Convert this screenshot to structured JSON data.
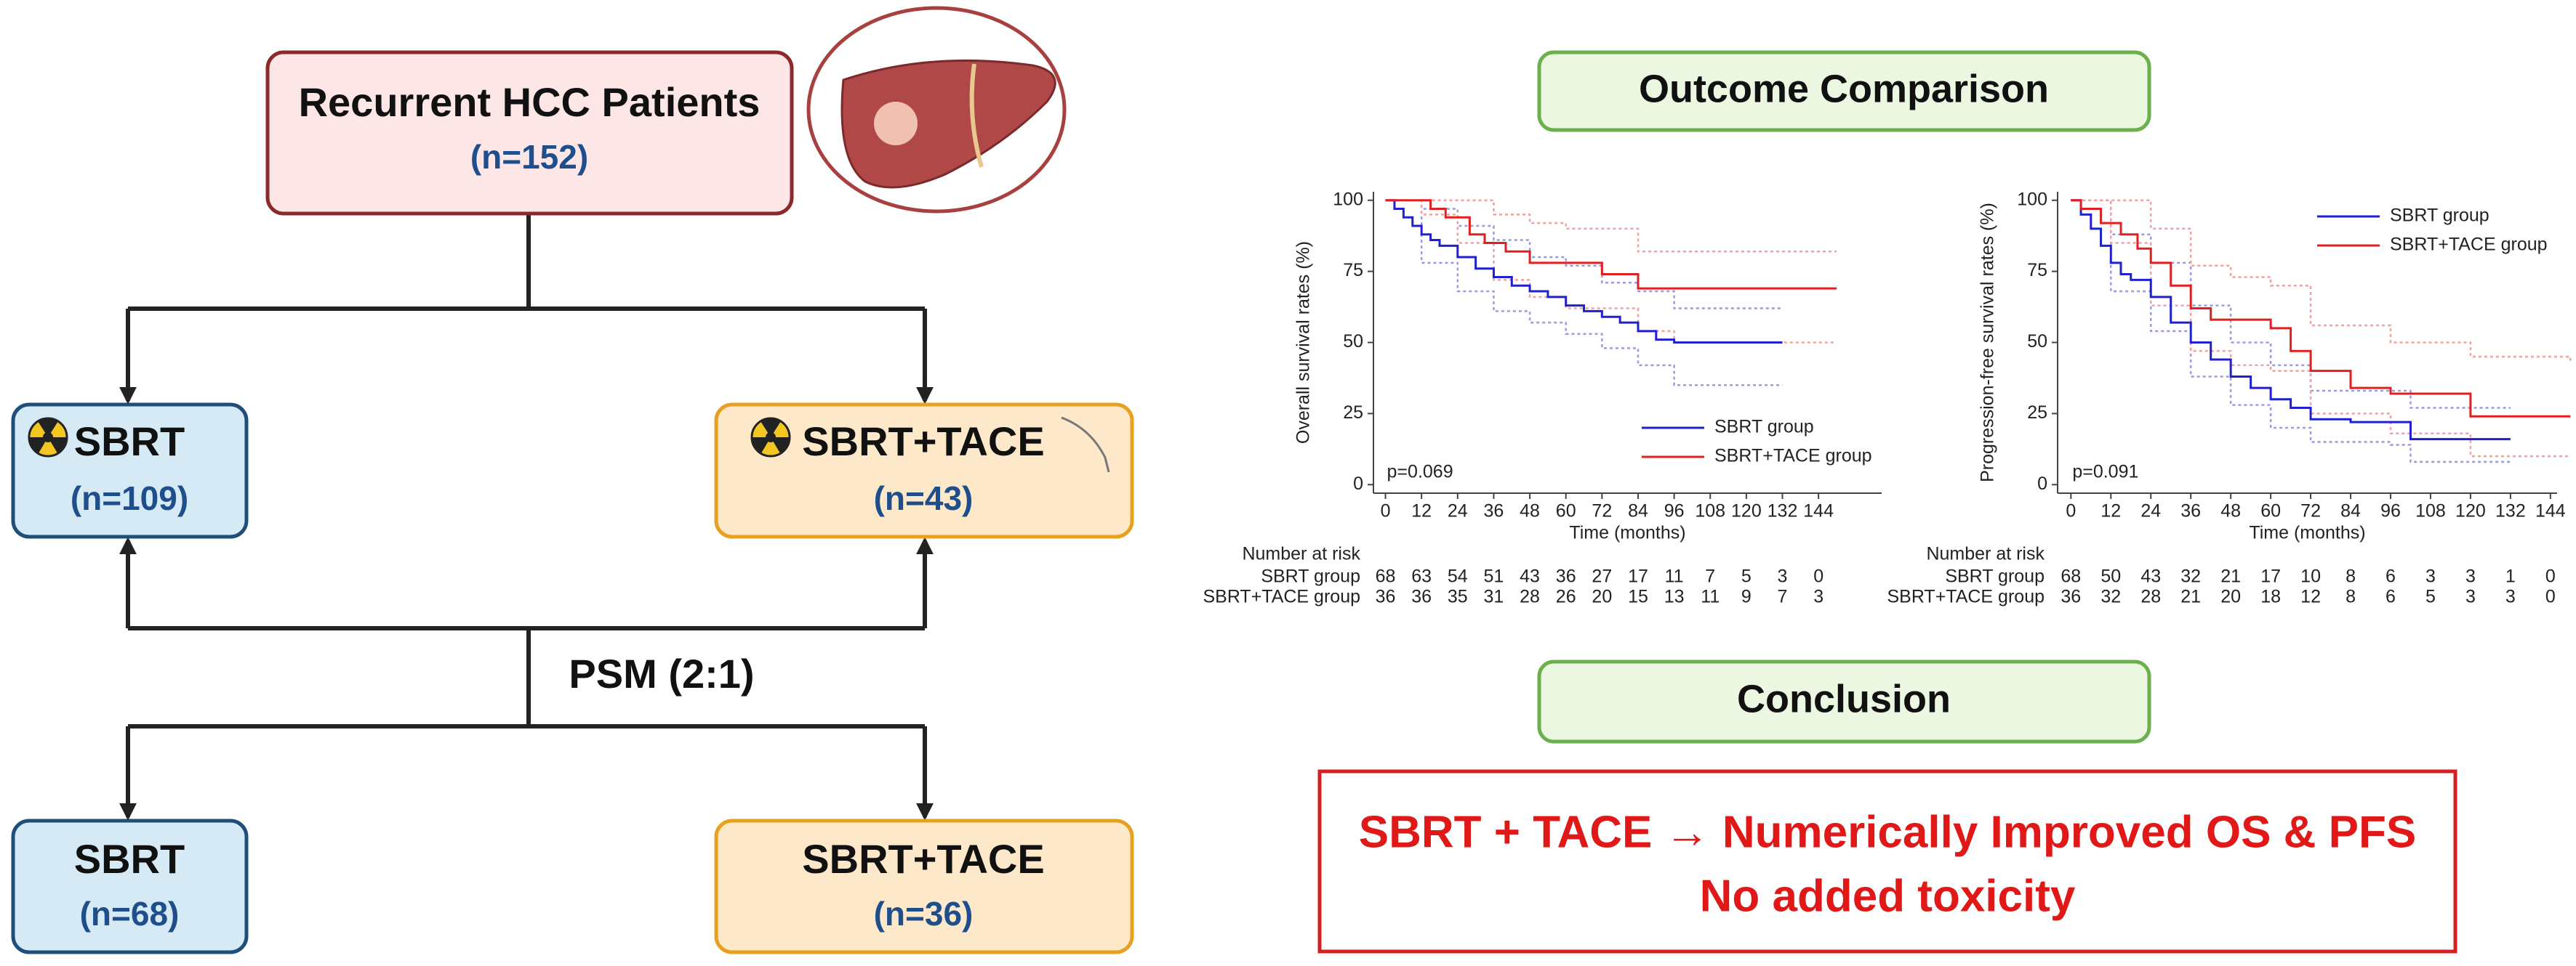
{
  "flowchart": {
    "top": {
      "title": "Recurrent HCC Patients",
      "n": "(n=152)"
    },
    "level1": [
      {
        "label": "SBRT",
        "n": "(n=109)"
      },
      {
        "label": "SBRT+TACE",
        "n": "(n=43)"
      }
    ],
    "psm": "PSM (2:1)",
    "level2": [
      {
        "label": "SBRT",
        "n": "(n=68)"
      },
      {
        "label": "SBRT+TACE",
        "n": "(n=36)"
      }
    ]
  },
  "outcome_title": "Outcome Comparison",
  "chart_data": [
    {
      "type": "line",
      "xlabel": "Time (months)",
      "ylabel": "Overall survival rates   (%)",
      "annotation": "p=0.069",
      "xlim": [
        -4,
        165
      ],
      "ylim": [
        -3,
        103
      ],
      "xticks": [
        0,
        12,
        24,
        36,
        48,
        60,
        72,
        84,
        96,
        108,
        120,
        132,
        144
      ],
      "yticks": [
        0,
        25,
        50,
        75,
        100
      ],
      "legend": "lower right",
      "step": true,
      "risk_title": "Number at risk",
      "series": [
        {
          "name": "SBRT group",
          "color": "#2020d0",
          "ci_color": "#9a9ae0",
          "x": [
            0,
            3,
            6,
            9,
            12,
            15,
            18,
            24,
            30,
            36,
            42,
            48,
            54,
            60,
            66,
            72,
            78,
            84,
            90,
            96,
            132
          ],
          "values": [
            100,
            97,
            94,
            91,
            88,
            86,
            84,
            80,
            76,
            73,
            70,
            68,
            66,
            63,
            61,
            59,
            57,
            54,
            51,
            50,
            50
          ],
          "ci": [
            {
              "x": [
                0,
                12,
                24,
                36,
                48,
                60,
                72,
                84,
                96,
                132
              ],
              "values": [
                100,
                97,
                91,
                86,
                80,
                77,
                71,
                68,
                62,
                62
              ]
            },
            {
              "x": [
                0,
                12,
                24,
                36,
                48,
                60,
                72,
                84,
                96,
                132
              ],
              "values": [
                100,
                78,
                68,
                61,
                57,
                53,
                48,
                42,
                35,
                35
              ]
            }
          ],
          "at_risk": [
            68,
            63,
            54,
            51,
            43,
            36,
            27,
            17,
            11,
            7,
            5,
            3,
            0
          ]
        },
        {
          "name": "SBRT+TACE group",
          "color": "#e02020",
          "ci_color": "#f0a0a0",
          "x": [
            0,
            12,
            15,
            20,
            28,
            33,
            40,
            48,
            60,
            72,
            84,
            150
          ],
          "values": [
            100,
            100,
            97,
            94,
            88,
            85,
            82,
            78,
            78,
            74,
            69,
            69
          ],
          "ci": [
            {
              "x": [
                0,
                24,
                36,
                48,
                60,
                84,
                150
              ],
              "values": [
                100,
                100,
                95,
                92,
                90,
                82,
                82
              ]
            },
            {
              "x": [
                0,
                12,
                24,
                36,
                48,
                60,
                84,
                96,
                150
              ],
              "values": [
                100,
                95,
                85,
                72,
                66,
                62,
                54,
                50,
                50
              ]
            }
          ],
          "at_risk": [
            36,
            36,
            35,
            31,
            28,
            26,
            20,
            15,
            13,
            11,
            9,
            7,
            3
          ]
        }
      ]
    },
    {
      "type": "line",
      "xlabel": "Time (months)",
      "ylabel": "Progression-free survival rates (%)",
      "annotation": "p=0.091",
      "xlim": [
        -4,
        146
      ],
      "ylim": [
        -3,
        103
      ],
      "xticks": [
        0,
        12,
        24,
        36,
        48,
        60,
        72,
        84,
        96,
        108,
        120,
        132,
        144
      ],
      "yticks": [
        0,
        25,
        50,
        75,
        100
      ],
      "legend": "upper right",
      "step": true,
      "risk_title": "Number at risk",
      "series": [
        {
          "name": "SBRT group",
          "color": "#2020d0",
          "ci_color": "#9a9ae0",
          "x": [
            0,
            3,
            6,
            9,
            12,
            15,
            18,
            24,
            30,
            36,
            42,
            48,
            54,
            60,
            66,
            72,
            84,
            96,
            102,
            132
          ],
          "values": [
            100,
            95,
            90,
            84,
            78,
            74,
            72,
            66,
            57,
            50,
            44,
            38,
            34,
            30,
            27,
            23,
            22,
            22,
            16,
            16
          ],
          "ci": [
            {
              "x": [
                0,
                12,
                24,
                36,
                48,
                60,
                72,
                96,
                102,
                132
              ],
              "values": [
                100,
                88,
                78,
                63,
                50,
                42,
                33,
                33,
                27,
                27
              ]
            },
            {
              "x": [
                0,
                12,
                24,
                36,
                48,
                60,
                72,
                96,
                102,
                132
              ],
              "values": [
                100,
                68,
                54,
                38,
                28,
                20,
                15,
                14,
                8,
                8
              ]
            }
          ],
          "at_risk": [
            68,
            50,
            43,
            32,
            21,
            17,
            10,
            8,
            6,
            3,
            3,
            1,
            0
          ]
        },
        {
          "name": "SBRT+TACE group",
          "color": "#e02020",
          "ci_color": "#f0a0a0",
          "x": [
            0,
            3,
            9,
            15,
            20,
            24,
            30,
            36,
            42,
            48,
            60,
            66,
            72,
            84,
            96,
            120,
            150
          ],
          "values": [
            100,
            97,
            92,
            88,
            83,
            78,
            70,
            62,
            58,
            58,
            55,
            47,
            40,
            34,
            32,
            24,
            24
          ],
          "ci": [
            {
              "x": [
                0,
                12,
                24,
                36,
                48,
                60,
                72,
                96,
                120,
                150
              ],
              "values": [
                100,
                100,
                90,
                77,
                73,
                70,
                56,
                50,
                45,
                43
              ]
            },
            {
              "x": [
                0,
                12,
                24,
                36,
                48,
                60,
                72,
                96,
                120,
                150
              ],
              "values": [
                100,
                85,
                63,
                47,
                42,
                40,
                25,
                18,
                10,
                10
              ]
            }
          ],
          "at_risk": [
            36,
            32,
            28,
            21,
            20,
            18,
            12,
            8,
            6,
            5,
            3,
            3,
            0
          ]
        }
      ]
    }
  ],
  "conclusion_title": "Conclusion",
  "conclusion": [
    "SBRT + TACE → Numerically Improved OS & PFS",
    "No added toxicity"
  ]
}
